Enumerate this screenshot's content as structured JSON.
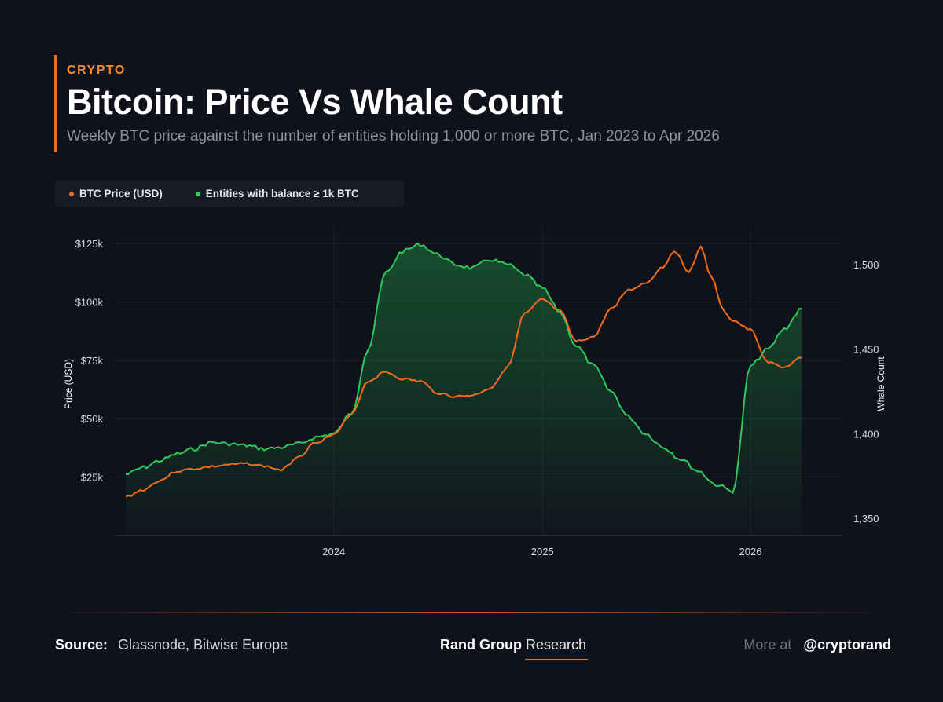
{
  "header": {
    "eyebrow": "CRYPTO",
    "title": "Bitcoin: Price Vs Whale Count",
    "subtitle": "Weekly BTC price against the number of entities holding 1,000 or more BTC, Jan 2023 to Apr 2026"
  },
  "legend": [
    {
      "label": "BTC Price (USD)",
      "color": "#f26b1d"
    },
    {
      "label": "Entities with balance ≥ 1k BTC",
      "color": "#2fc95b"
    }
  ],
  "chart_data": {
    "type": "line",
    "title": "Bitcoin: Price Vs Whale Count",
    "x_ticks": [
      "2024",
      "2025",
      "2026"
    ],
    "x_range": [
      "2023-01",
      "2026-04"
    ],
    "y_left": {
      "label": "Price (USD)",
      "ticks": [
        "$25k",
        "$50k",
        "$75k",
        "$100k",
        "$125k"
      ],
      "range": [
        0,
        125000
      ]
    },
    "y_right": {
      "label": "Whale Count",
      "ticks": [
        "1,350",
        "1,400",
        "1,450",
        "1,500"
      ],
      "range": [
        1340,
        1510
      ]
    },
    "grid": "horizontal",
    "series": [
      {
        "name": "BTC Price (USD)",
        "axis": "left",
        "color": "#f26b1d",
        "points": [
          [
            "2023-01-01",
            16600
          ],
          [
            "2023-02-01",
            19500
          ],
          [
            "2023-03-01",
            23500
          ],
          [
            "2023-04-01",
            27500
          ],
          [
            "2023-05-01",
            28500
          ],
          [
            "2023-06-01",
            29500
          ],
          [
            "2023-07-01",
            30300
          ],
          [
            "2023-08-01",
            30800
          ],
          [
            "2023-09-01",
            29700
          ],
          [
            "2023-10-01",
            28000
          ],
          [
            "2023-11-01",
            34000
          ],
          [
            "2023-12-01",
            40000
          ],
          [
            "2024-01-01",
            43000
          ],
          [
            "2024-02-01",
            52000
          ],
          [
            "2024-03-01",
            66000
          ],
          [
            "2024-04-01",
            70000
          ],
          [
            "2024-05-01",
            67000
          ],
          [
            "2024-06-01",
            66000
          ],
          [
            "2024-07-01",
            61000
          ],
          [
            "2024-08-01",
            59500
          ],
          [
            "2024-09-01",
            60000
          ],
          [
            "2024-10-01",
            63000
          ],
          [
            "2024-11-01",
            72000
          ],
          [
            "2024-12-01",
            95000
          ],
          [
            "2025-01-01",
            101000
          ],
          [
            "2025-02-01",
            96000
          ],
          [
            "2025-03-01",
            83000
          ],
          [
            "2025-04-01",
            85000
          ],
          [
            "2025-05-01",
            97000
          ],
          [
            "2025-06-01",
            105000
          ],
          [
            "2025-07-01",
            108000
          ],
          [
            "2025-08-01",
            115000
          ],
          [
            "2025-08-20",
            122000
          ],
          [
            "2025-09-15",
            113000
          ],
          [
            "2025-10-06",
            123500
          ],
          [
            "2025-10-25",
            110000
          ],
          [
            "2025-11-15",
            96000
          ],
          [
            "2025-12-01",
            92000
          ],
          [
            "2026-01-01",
            88000
          ],
          [
            "2026-02-01",
            74000
          ],
          [
            "2026-03-01",
            72000
          ],
          [
            "2026-04-01",
            76000
          ]
        ]
      },
      {
        "name": "Entities with balance ≥ 1k BTC",
        "axis": "right",
        "color": "#2fc95b",
        "points": [
          [
            "2023-01-01",
            1376
          ],
          [
            "2023-02-01",
            1380
          ],
          [
            "2023-03-01",
            1384
          ],
          [
            "2023-04-01",
            1388
          ],
          [
            "2023-05-01",
            1391
          ],
          [
            "2023-06-01",
            1395
          ],
          [
            "2023-07-01",
            1394
          ],
          [
            "2023-08-01",
            1393
          ],
          [
            "2023-09-01",
            1391
          ],
          [
            "2023-10-01",
            1392
          ],
          [
            "2023-11-01",
            1394
          ],
          [
            "2023-12-01",
            1398
          ],
          [
            "2024-01-01",
            1400
          ],
          [
            "2024-02-01",
            1412
          ],
          [
            "2024-03-01",
            1450
          ],
          [
            "2024-04-01",
            1495
          ],
          [
            "2024-05-01",
            1508
          ],
          [
            "2024-06-01",
            1512
          ],
          [
            "2024-07-01",
            1506
          ],
          [
            "2024-08-01",
            1500
          ],
          [
            "2024-09-01",
            1498
          ],
          [
            "2024-10-01",
            1503
          ],
          [
            "2024-11-01",
            1500
          ],
          [
            "2024-12-01",
            1494
          ],
          [
            "2025-01-01",
            1486
          ],
          [
            "2025-02-01",
            1472
          ],
          [
            "2025-03-01",
            1452
          ],
          [
            "2025-04-01",
            1440
          ],
          [
            "2025-05-01",
            1425
          ],
          [
            "2025-06-01",
            1410
          ],
          [
            "2025-07-01",
            1400
          ],
          [
            "2025-08-01",
            1392
          ],
          [
            "2025-09-01",
            1385
          ],
          [
            "2025-10-01",
            1378
          ],
          [
            "2025-11-01",
            1370
          ],
          [
            "2025-12-01",
            1366
          ],
          [
            "2026-01-01",
            1440
          ],
          [
            "2026-02-01",
            1450
          ],
          [
            "2026-03-01",
            1462
          ],
          [
            "2026-04-01",
            1474
          ]
        ]
      }
    ]
  },
  "footer": {
    "source_label": "Source:",
    "source_value": "Glassnode, Bitwise Europe",
    "brand_strong": "Rand Group",
    "brand_light": "Research",
    "more_label": "More at",
    "handle": "@cryptorand"
  }
}
